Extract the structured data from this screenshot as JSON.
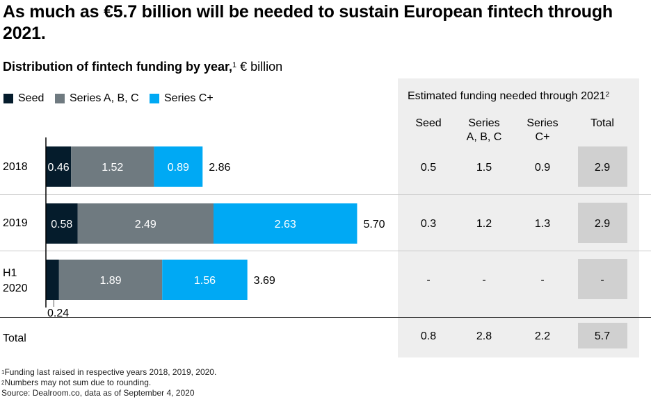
{
  "title": "As much as €5.7 billion will be needed to sustain European fintech through 2021.",
  "subtitle": {
    "bold": "Distribution of fintech funding by year,",
    "sup": "1",
    "unit": "€ billion"
  },
  "colors": {
    "seed": "#051c2c",
    "series_abc": "#6f7a80",
    "series_cplus": "#00a9f4",
    "panel": "#eeeeee",
    "total_box": "#d0d0d0"
  },
  "chart_data": {
    "type": "bar",
    "orientation": "horizontal",
    "stacked": true,
    "categories": [
      "2018",
      "2019",
      "H1 2020"
    ],
    "series": [
      {
        "name": "Seed",
        "values": [
          0.46,
          0.58,
          0.24
        ],
        "labels": [
          "0.46",
          "0.58",
          "0.24"
        ]
      },
      {
        "name": "Series A, B, C",
        "values": [
          1.52,
          2.49,
          1.89
        ],
        "labels": [
          "1.52",
          "2.49",
          "1.89"
        ]
      },
      {
        "name": "Series C+",
        "values": [
          0.89,
          2.63,
          1.56
        ],
        "labels": [
          "0.89",
          "2.63",
          "1.56"
        ]
      }
    ],
    "totals": [
      "2.86",
      "5.70",
      "3.69"
    ],
    "xlim": [
      0,
      6.2
    ],
    "legend": "top-left",
    "grid": false,
    "row_labels": [
      [
        "2018"
      ],
      [
        "2019"
      ],
      [
        "H1",
        "2020"
      ]
    ],
    "total_row_label": "Total"
  },
  "panel": {
    "title": "Estimated funding needed through 2021",
    "title_sup": "2",
    "columns": [
      [
        "Seed"
      ],
      [
        "Series",
        "A, B, C"
      ],
      [
        "Series",
        "C+"
      ],
      [
        "Total"
      ]
    ],
    "rows": [
      [
        "0.5",
        "1.5",
        "0.9",
        "2.9"
      ],
      [
        "0.3",
        "1.2",
        "1.3",
        "2.9"
      ],
      [
        "-",
        "-",
        "-",
        "-"
      ]
    ],
    "total_row": [
      "0.8",
      "2.8",
      "2.2",
      "5.7"
    ]
  },
  "footnotes": [
    {
      "sup": "1",
      "text": "Funding last raised in respective years 2018, 2019, 2020."
    },
    {
      "sup": "2",
      "text": "Numbers may not sum due to rounding."
    },
    {
      "sup": "",
      "text": "Source: Dealroom.co, data as of September 4, 2020"
    }
  ]
}
